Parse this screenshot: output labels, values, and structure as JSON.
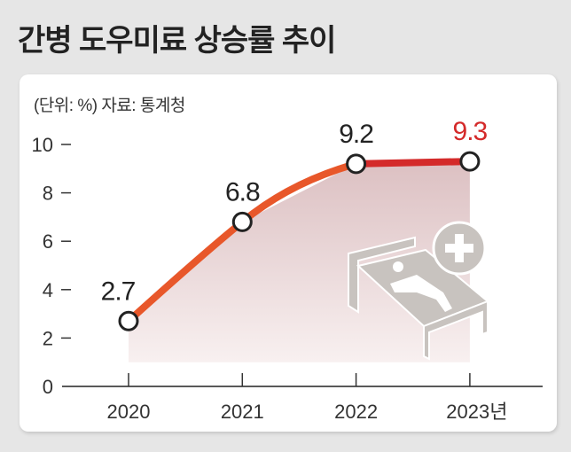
{
  "title": "간병 도우미료 상승률 추이",
  "unit_source": "(단위: %) 자료: 통계청",
  "chart_data": {
    "type": "line",
    "title": "간병 도우미료 상승률 추이",
    "categories": [
      "2020",
      "2021",
      "2022",
      "2023년"
    ],
    "values": [
      2.7,
      6.8,
      9.2,
      9.3
    ],
    "data_labels": [
      "2.7",
      "6.8",
      "9.2",
      "9.3"
    ],
    "yticks": [
      "0",
      "2",
      "4",
      "6",
      "8",
      "10"
    ],
    "ylim": [
      0,
      10
    ],
    "xlabel": "",
    "ylabel": "%",
    "grid": false,
    "colors": {
      "line": "#e8572a",
      "highlight": "#d42a2a",
      "fill": "#e2c9ca",
      "axis": "#222222",
      "icon": "#c8c3bf"
    }
  }
}
